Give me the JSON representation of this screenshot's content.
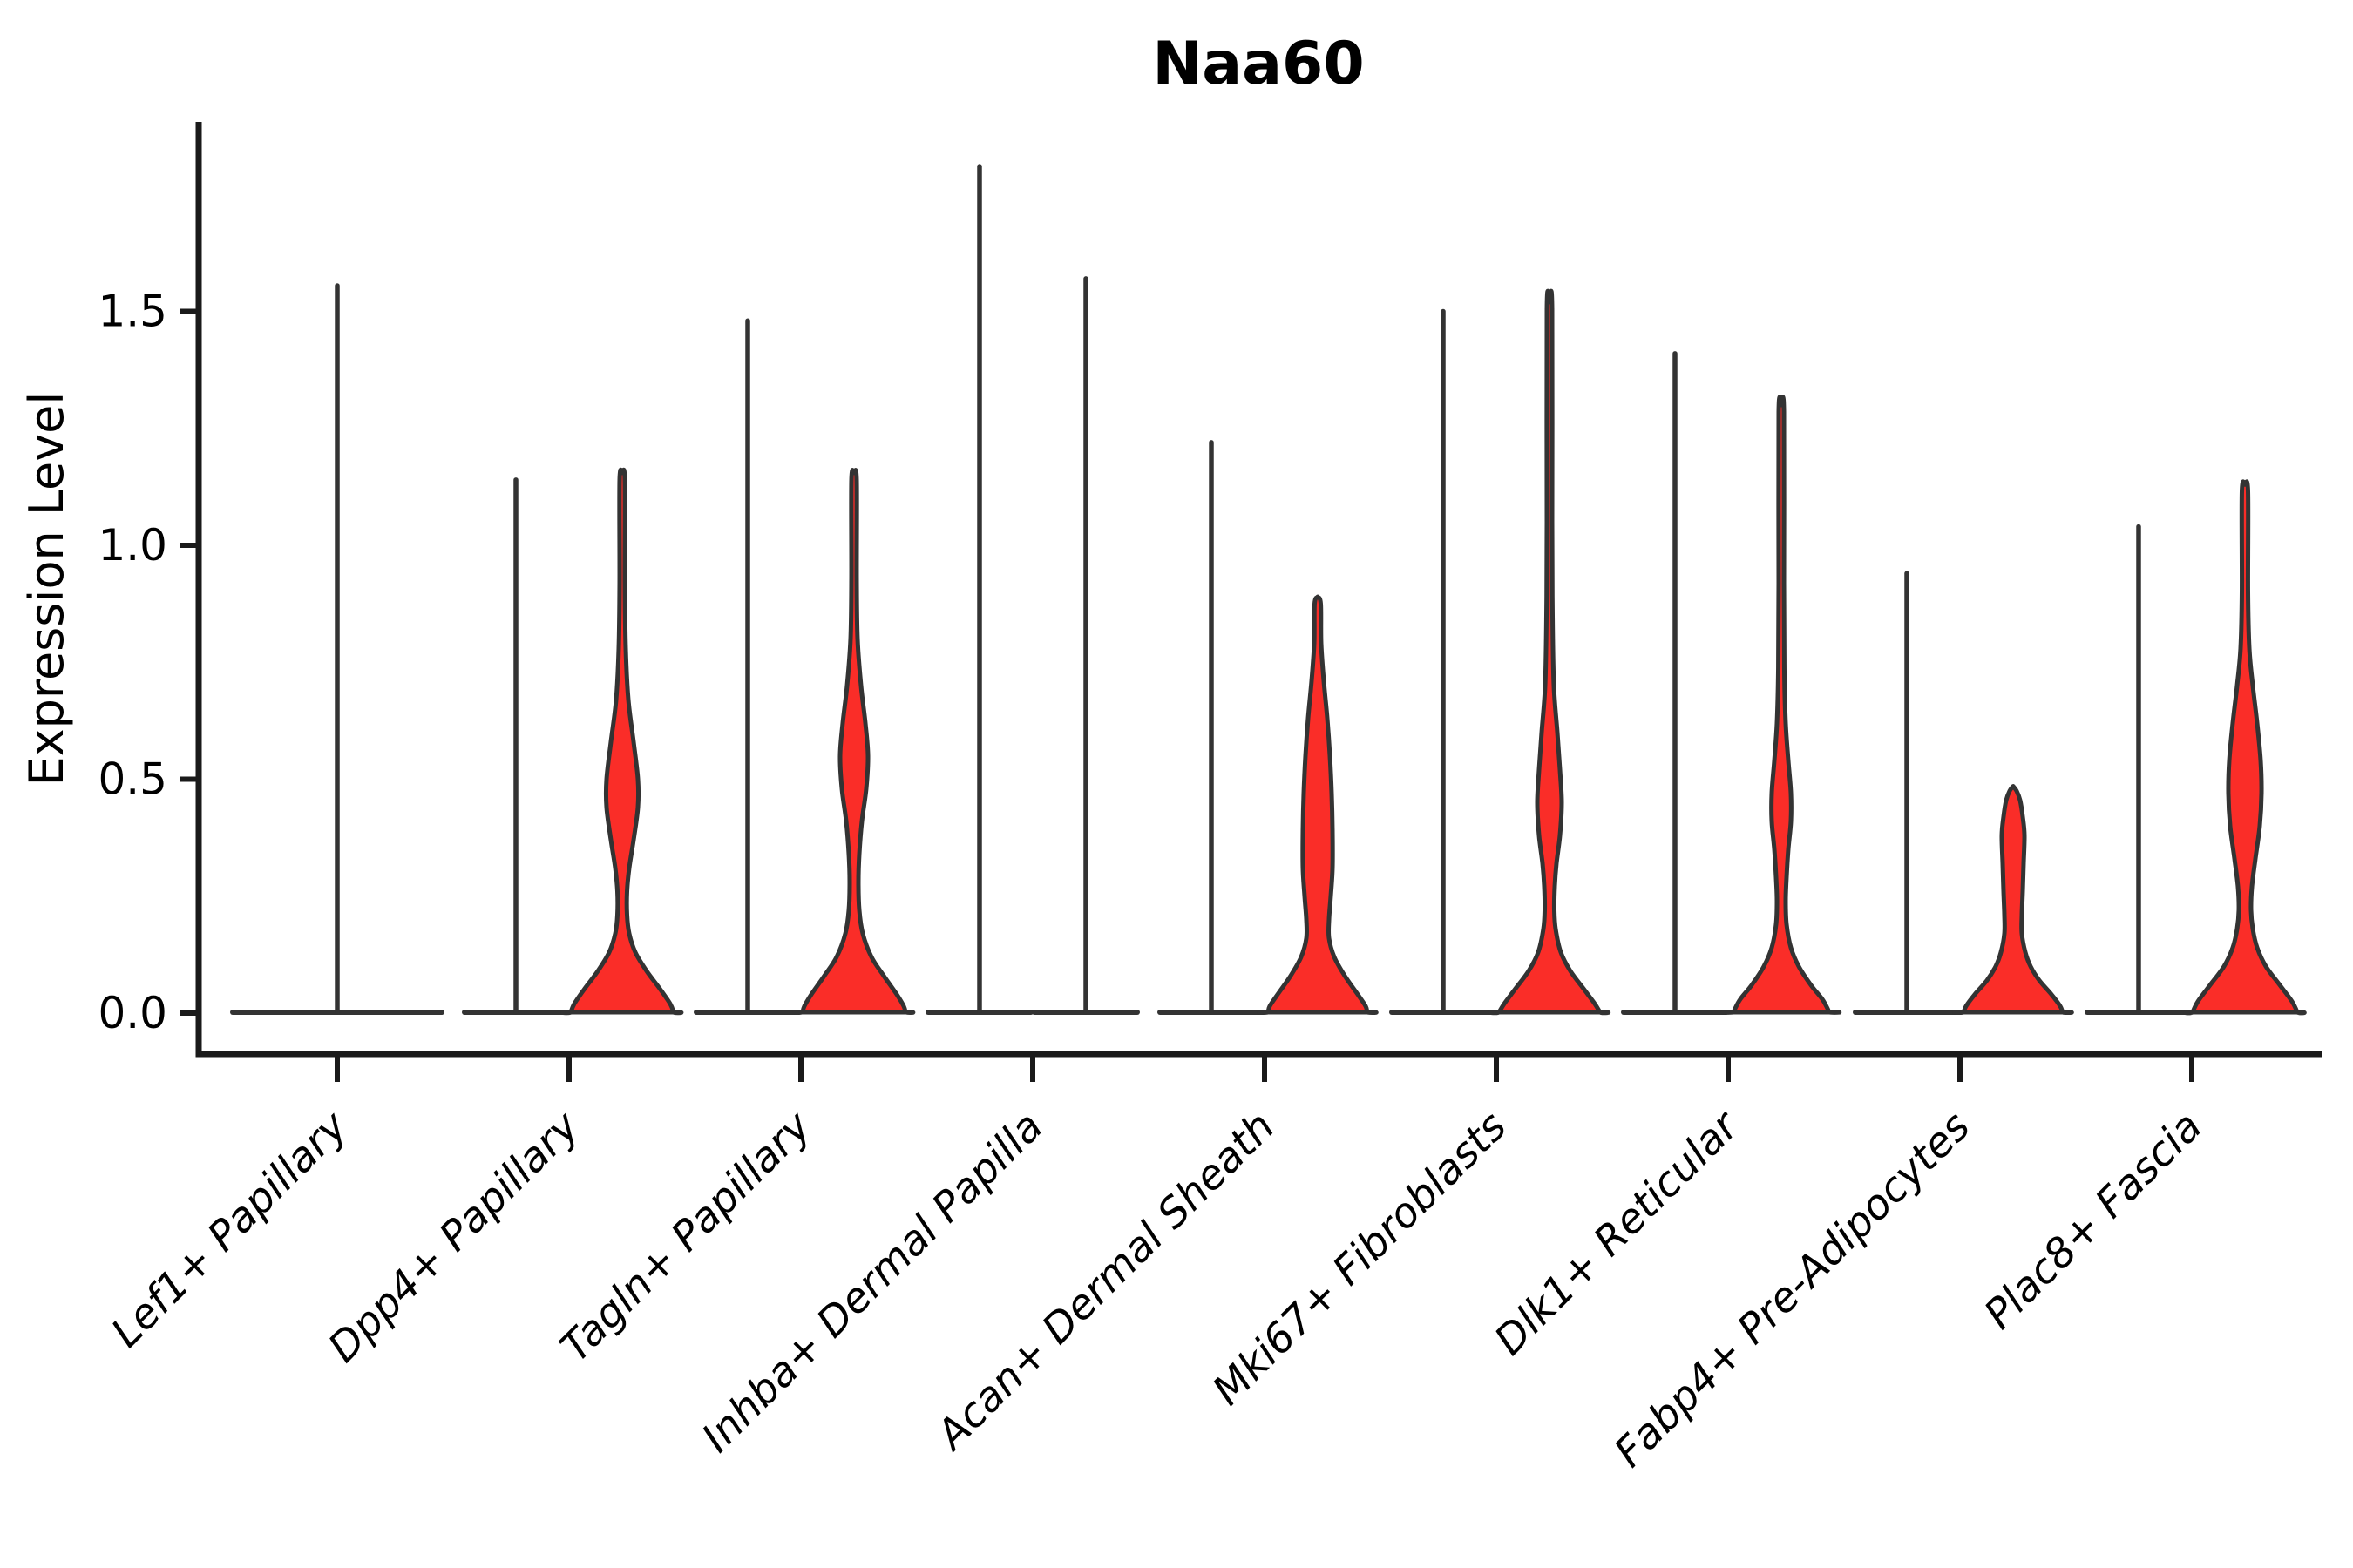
{
  "title": "Naa60",
  "chart_data": {
    "type": "violin",
    "title": "Naa60",
    "ylabel": "Expression Level",
    "xlabel": "",
    "yticks": [
      0.0,
      0.5,
      1.0,
      1.5
    ],
    "ylim": [
      -0.088,
      1.905
    ],
    "grid": false,
    "legend": "none",
    "colors": {
      "violin_fill": "#FA2D28",
      "violin_stroke": "#333333",
      "spine_color": "#1A1A1A",
      "text_color": "#000000"
    },
    "categories": [
      "Lef1+ Papillary",
      "Dpp4+ Papillary",
      "Tagln+ Papillary",
      "Inhba+ Dermal Papilla",
      "Acan+ Dermal Sheath",
      "Mki67+ Fibroblasts",
      "Dlk1+ Reticular",
      "Fabp4+ Pre-Adipocytes",
      "Plac8+ Fascia"
    ],
    "groups": [
      {
        "category": "Lef1+ Papillary",
        "violins": [
          {
            "side": "single",
            "offset": 0,
            "base_halfwidth": 120,
            "max": 1.555,
            "body_profile": null
          }
        ]
      },
      {
        "category": "Dpp4+ Papillary",
        "violins": [
          {
            "side": "left",
            "offset": -61,
            "base_halfwidth": 59,
            "max": 1.14,
            "body_profile": null
          },
          {
            "side": "right",
            "offset": 61,
            "base_halfwidth": 59,
            "max": 1.155,
            "body_profile": [
              [
                1.155,
                0
              ],
              [
                1.14,
                3
              ],
              [
                0.92,
                3
              ],
              [
                0.78,
                4
              ],
              [
                0.67,
                7
              ],
              [
                0.58,
                13
              ],
              [
                0.5,
                18
              ],
              [
                0.44,
                18
              ],
              [
                0.37,
                13
              ],
              [
                0.31,
                8
              ],
              [
                0.26,
                5.5
              ],
              [
                0.21,
                5.5
              ],
              [
                0.17,
                8
              ],
              [
                0.13,
                15
              ],
              [
                0.09,
                28
              ],
              [
                0.05,
                44
              ],
              [
                0.02,
                55
              ],
              [
                0,
                59
              ]
            ]
          }
        ]
      },
      {
        "category": "Tagln+ Papillary",
        "violins": [
          {
            "side": "left",
            "offset": -61,
            "base_halfwidth": 59,
            "max": 1.48,
            "body_profile": null
          },
          {
            "side": "right",
            "offset": 61,
            "base_halfwidth": 59,
            "max": 1.155,
            "body_profile": [
              [
                1.155,
                0
              ],
              [
                1.14,
                3
              ],
              [
                0.93,
                3
              ],
              [
                0.8,
                4
              ],
              [
                0.7,
                8
              ],
              [
                0.62,
                13
              ],
              [
                0.55,
                16
              ],
              [
                0.48,
                14
              ],
              [
                0.41,
                9
              ],
              [
                0.34,
                6
              ],
              [
                0.28,
                5
              ],
              [
                0.22,
                6
              ],
              [
                0.17,
                10
              ],
              [
                0.12,
                20
              ],
              [
                0.08,
                34
              ],
              [
                0.04,
                49
              ],
              [
                0.015,
                57
              ],
              [
                0,
                59
              ]
            ]
          }
        ]
      },
      {
        "category": "Inhba+ Dermal Papilla",
        "violins": [
          {
            "side": "left",
            "offset": -61,
            "base_halfwidth": 59,
            "max": 1.81,
            "body_profile": null
          },
          {
            "side": "right",
            "offset": 61,
            "base_halfwidth": 59,
            "max": 1.57,
            "body_profile": null
          }
        ]
      },
      {
        "category": "Acan+ Dermal Sheath",
        "violins": [
          {
            "side": "left",
            "offset": -61,
            "base_halfwidth": 59,
            "max": 1.22,
            "body_profile": null
          },
          {
            "side": "right",
            "offset": 61,
            "base_halfwidth": 59,
            "max": 0.89,
            "body_profile": [
              [
                0.89,
                0
              ],
              [
                0.875,
                3.5
              ],
              [
                0.79,
                4
              ],
              [
                0.71,
                7
              ],
              [
                0.63,
                11
              ],
              [
                0.55,
                14
              ],
              [
                0.47,
                16
              ],
              [
                0.39,
                17
              ],
              [
                0.31,
                17
              ],
              [
                0.25,
                15
              ],
              [
                0.2,
                13
              ],
              [
                0.16,
                13
              ],
              [
                0.12,
                19
              ],
              [
                0.08,
                31
              ],
              [
                0.04,
                46
              ],
              [
                0.015,
                55
              ],
              [
                0,
                57
              ]
            ]
          }
        ]
      },
      {
        "category": "Mki67+ Fibroblasts",
        "violins": [
          {
            "side": "left",
            "offset": -61,
            "base_halfwidth": 59,
            "max": 1.5,
            "body_profile": null
          },
          {
            "side": "right",
            "offset": 61,
            "base_halfwidth": 59,
            "max": 1.52,
            "body_profile": [
              [
                1.52,
                0
              ],
              [
                1.505,
                3
              ],
              [
                1.05,
                3
              ],
              [
                0.85,
                3.5
              ],
              [
                0.7,
                5
              ],
              [
                0.6,
                9
              ],
              [
                0.52,
                12
              ],
              [
                0.45,
                14
              ],
              [
                0.38,
                12
              ],
              [
                0.32,
                8
              ],
              [
                0.27,
                6
              ],
              [
                0.22,
                5.5
              ],
              [
                0.18,
                7
              ],
              [
                0.13,
                13
              ],
              [
                0.09,
                24
              ],
              [
                0.05,
                40
              ],
              [
                0.02,
                52
              ],
              [
                0,
                58
              ]
            ]
          }
        ]
      },
      {
        "category": "Dlk1+ Reticular",
        "violins": [
          {
            "side": "left",
            "offset": -61,
            "base_halfwidth": 59,
            "max": 1.41,
            "body_profile": null
          },
          {
            "side": "right",
            "offset": 61,
            "base_halfwidth": 59,
            "max": 1.3,
            "body_profile": [
              [
                1.3,
                0
              ],
              [
                1.285,
                3
              ],
              [
                0.92,
                3
              ],
              [
                0.73,
                3.5
              ],
              [
                0.62,
                5
              ],
              [
                0.54,
                8
              ],
              [
                0.47,
                11
              ],
              [
                0.41,
                11
              ],
              [
                0.35,
                8
              ],
              [
                0.29,
                6
              ],
              [
                0.24,
                5
              ],
              [
                0.19,
                6
              ],
              [
                0.14,
                11
              ],
              [
                0.1,
                20
              ],
              [
                0.06,
                34
              ],
              [
                0.03,
                47
              ],
              [
                0.01,
                53
              ],
              [
                0,
                55
              ]
            ]
          }
        ]
      },
      {
        "category": "Fabp4+ Pre-Adipocytes",
        "violins": [
          {
            "side": "left",
            "offset": -61,
            "base_halfwidth": 59,
            "max": 0.94,
            "body_profile": null
          },
          {
            "side": "right",
            "offset": 61,
            "base_halfwidth": 59,
            "max": 0.485,
            "body_profile": [
              [
                0.485,
                0
              ],
              [
                0.475,
                4
              ],
              [
                0.455,
                8
              ],
              [
                0.42,
                11
              ],
              [
                0.38,
                13
              ],
              [
                0.32,
                12
              ],
              [
                0.26,
                11
              ],
              [
                0.21,
                10
              ],
              [
                0.17,
                10
              ],
              [
                0.13,
                14
              ],
              [
                0.1,
                20
              ],
              [
                0.07,
                30
              ],
              [
                0.04,
                44
              ],
              [
                0.015,
                54
              ],
              [
                0,
                57
              ]
            ]
          }
        ]
      },
      {
        "category": "Plac8+ Fascia",
        "violins": [
          {
            "side": "left",
            "offset": -61,
            "base_halfwidth": 59,
            "max": 1.04,
            "body_profile": null
          },
          {
            "side": "right",
            "offset": 61,
            "base_halfwidth": 59,
            "max": 1.13,
            "body_profile": [
              [
                1.13,
                0
              ],
              [
                1.115,
                3.5
              ],
              [
                0.9,
                3.5
              ],
              [
                0.78,
                5
              ],
              [
                0.7,
                9
              ],
              [
                0.62,
                14
              ],
              [
                0.54,
                18
              ],
              [
                0.47,
                19
              ],
              [
                0.4,
                17
              ],
              [
                0.33,
                12
              ],
              [
                0.27,
                8
              ],
              [
                0.22,
                7
              ],
              [
                0.18,
                9
              ],
              [
                0.14,
                14
              ],
              [
                0.1,
                24
              ],
              [
                0.06,
                40
              ],
              [
                0.025,
                54
              ],
              [
                0,
                60
              ]
            ]
          }
        ]
      }
    ]
  }
}
